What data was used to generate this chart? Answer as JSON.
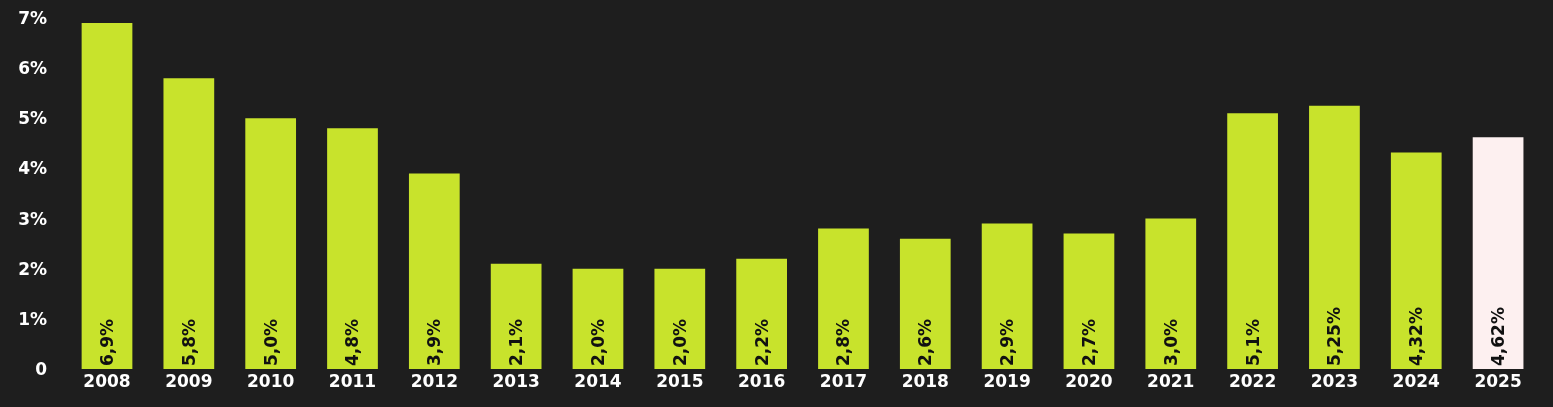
{
  "chart_data": {
    "type": "bar",
    "categories": [
      "2008",
      "2009",
      "2010",
      "2011",
      "2012",
      "2013",
      "2014",
      "2015",
      "2016",
      "2017",
      "2018",
      "2019",
      "2020",
      "2021",
      "2022",
      "2023",
      "2024",
      "2025"
    ],
    "values": [
      6.9,
      5.8,
      5.0,
      4.8,
      3.9,
      2.1,
      2.0,
      2.0,
      2.2,
      2.8,
      2.6,
      2.9,
      2.7,
      3.0,
      5.1,
      5.25,
      4.32,
      4.62
    ],
    "value_labels": [
      "6,9%",
      "5,8%",
      "5,0%",
      "4,8%",
      "3,9%",
      "2,1%",
      "2,0%",
      "2,0%",
      "2,2%",
      "2,8%",
      "2,6%",
      "2,9%",
      "2,7%",
      "3,0%",
      "5,1%",
      "5,25%",
      "4,32%",
      "4,62%"
    ],
    "colors": [
      "#c8e32c",
      "#c8e32c",
      "#c8e32c",
      "#c8e32c",
      "#c8e32c",
      "#c8e32c",
      "#c8e32c",
      "#c8e32c",
      "#c8e32c",
      "#c8e32c",
      "#c8e32c",
      "#c8e32c",
      "#c8e32c",
      "#c8e32c",
      "#c8e32c",
      "#c8e32c",
      "#c8e32c",
      "#fdf0f0"
    ],
    "ylim": [
      0,
      7
    ],
    "yticks": [
      {
        "value": 0,
        "label": "0"
      },
      {
        "value": 1,
        "label": "1%"
      },
      {
        "value": 2,
        "label": "2%"
      },
      {
        "value": 3,
        "label": "3%"
      },
      {
        "value": 4,
        "label": "4%"
      },
      {
        "value": 5,
        "label": "5%"
      },
      {
        "value": 6,
        "label": "6%"
      },
      {
        "value": 7,
        "label": "7%"
      }
    ]
  }
}
